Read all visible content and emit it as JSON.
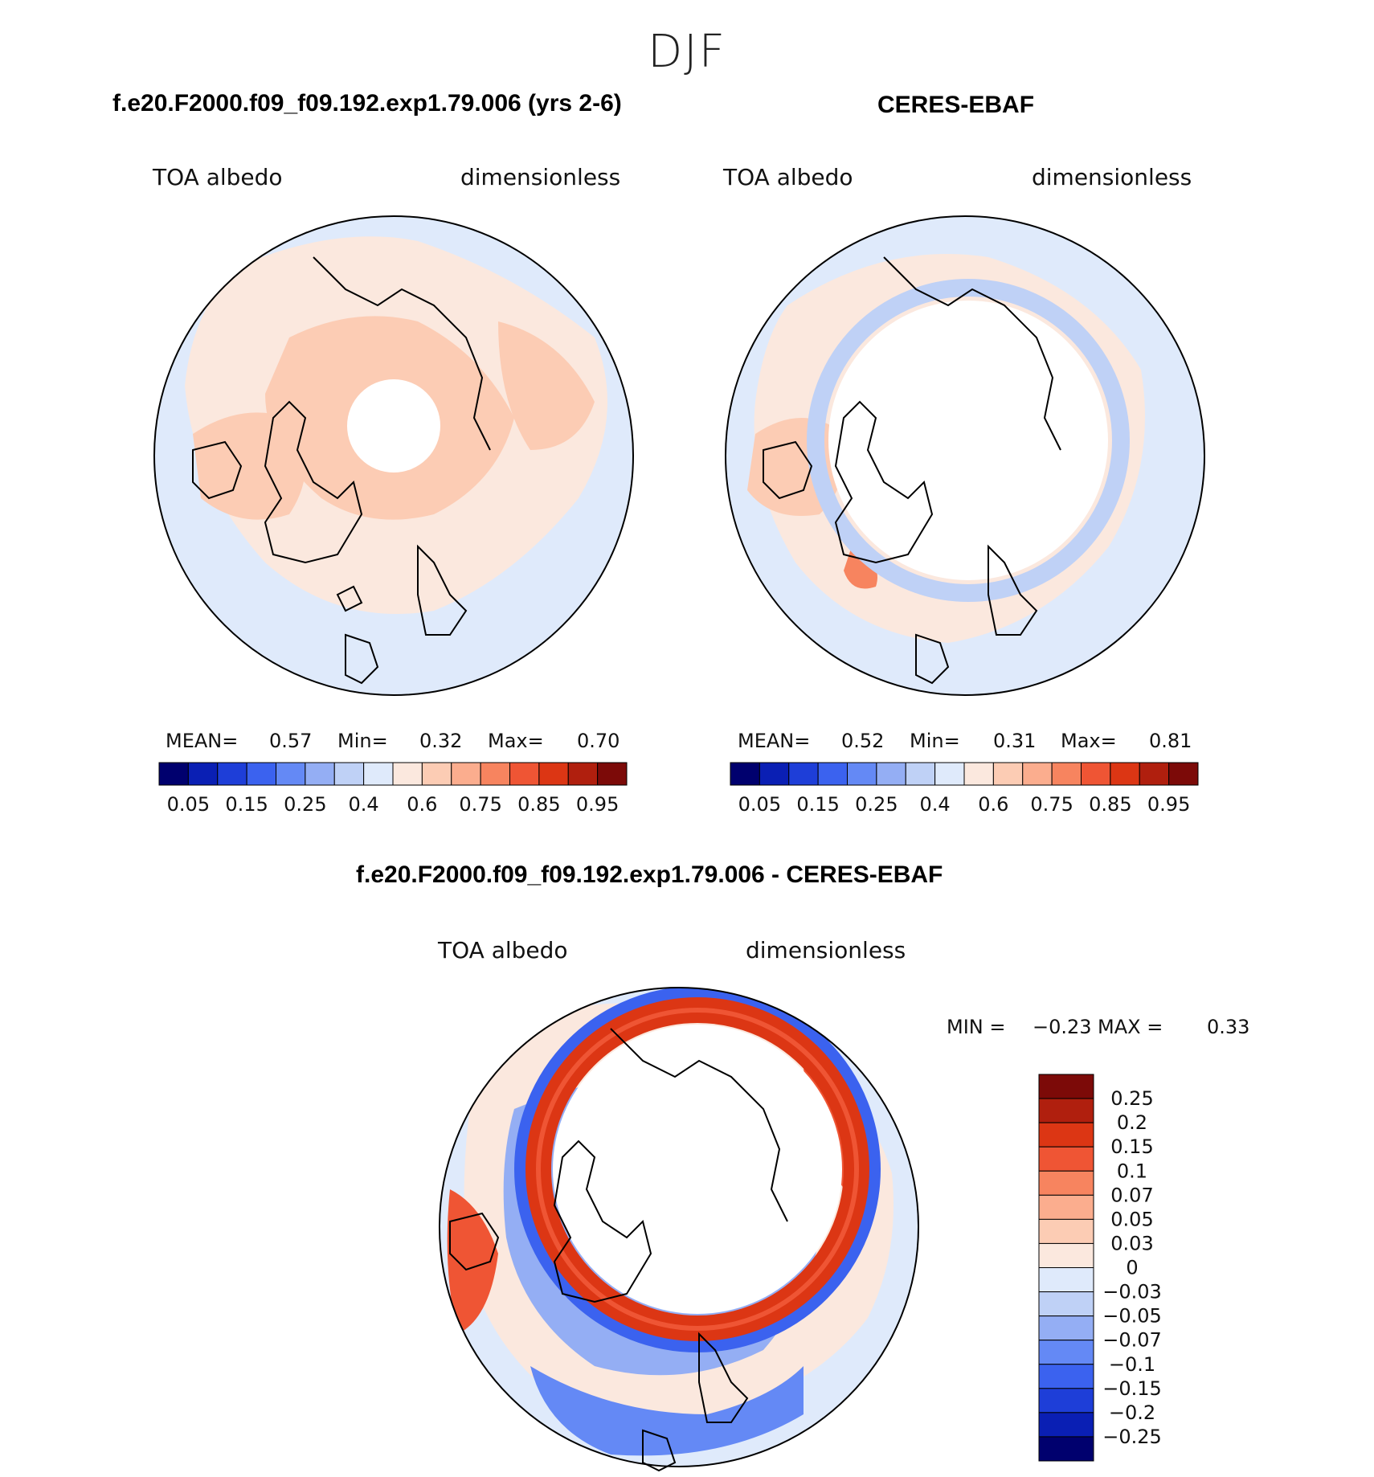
{
  "season": "DJF",
  "panels": [
    {
      "title": "f.e20.F2000.f09_f09.192.exp1.79.006 (yrs 2-6)",
      "variable": "TOA albedo",
      "units": "dimensionless",
      "stats": {
        "mean_label": "MEAN=",
        "mean": "0.57",
        "min_label": "Min=",
        "min": "0.32",
        "max_label": "Max=",
        "max": "0.70"
      }
    },
    {
      "title": "CERES-EBAF",
      "variable": "TOA albedo",
      "units": "dimensionless",
      "stats": {
        "mean_label": "MEAN=",
        "mean": "0.52",
        "min_label": "Min=",
        "min": "0.31",
        "max_label": "Max=",
        "max": "0.81"
      }
    },
    {
      "title": "f.e20.F2000.f09_f09.192.exp1.79.006 - CERES-EBAF",
      "variable": "TOA albedo",
      "units": "dimensionless",
      "stats": {
        "min_label": "MIN =",
        "min": "−0.23",
        "max_label": "MAX =",
        "max": "0.33"
      }
    }
  ],
  "colors": {
    "top_scale": [
      "#00006e",
      "#0a1fb4",
      "#1e3ed8",
      "#3b62ef",
      "#6489f5",
      "#94aef4",
      "#bfd1f6",
      "#dfeafb",
      "#fbe8de",
      "#fcccb4",
      "#fbad8e",
      "#f7845f",
      "#ef5534",
      "#dc3614",
      "#b01f0e",
      "#7c0a08"
    ],
    "diff_scale": [
      "#7c0a08",
      "#b01f0e",
      "#dc3614",
      "#ef5534",
      "#f7845f",
      "#fbad8e",
      "#fcccb4",
      "#fbe8de",
      "#dfeafb",
      "#bfd1f6",
      "#94aef4",
      "#6489f5",
      "#3b62ef",
      "#1e3ed8",
      "#0a1fb4",
      "#00006e"
    ]
  },
  "chart_data": [
    {
      "type": "heatmap",
      "projection": "north-polar-stereographic",
      "title": "f.e20.F2000.f09_f09.192.exp1.79.006 (yrs 2-6)",
      "variable": "TOA albedo",
      "units": "dimensionless",
      "mean": 0.57,
      "min": 0.32,
      "max": 0.7,
      "colorbar_levels": [
        0.05,
        0.1,
        0.15,
        0.2,
        0.25,
        0.3,
        0.4,
        0.5,
        0.6,
        0.7,
        0.75,
        0.8,
        0.85,
        0.9,
        0.95
      ],
      "colorbar_labels": [
        "0.05",
        "0.15",
        "0.25",
        "0.4",
        "0.6",
        "0.75",
        "0.85",
        "0.95"
      ]
    },
    {
      "type": "heatmap",
      "projection": "north-polar-stereographic",
      "title": "CERES-EBAF",
      "variable": "TOA albedo",
      "units": "dimensionless",
      "mean": 0.52,
      "min": 0.31,
      "max": 0.81,
      "colorbar_levels": [
        0.05,
        0.1,
        0.15,
        0.2,
        0.25,
        0.3,
        0.4,
        0.5,
        0.6,
        0.7,
        0.75,
        0.8,
        0.85,
        0.9,
        0.95
      ],
      "colorbar_labels": [
        "0.05",
        "0.15",
        "0.25",
        "0.4",
        "0.6",
        "0.75",
        "0.85",
        "0.95"
      ]
    },
    {
      "type": "heatmap",
      "projection": "north-polar-stereographic",
      "title": "f.e20.F2000.f09_f09.192.exp1.79.006 - CERES-EBAF",
      "variable": "TOA albedo",
      "units": "dimensionless",
      "min": -0.23,
      "max": 0.33,
      "colorbar_labels": [
        "0.25",
        "0.2",
        "0.15",
        "0.1",
        "0.07",
        "0.05",
        "0.03",
        "0",
        "−0.03",
        "−0.05",
        "−0.07",
        "−0.1",
        "−0.15",
        "−0.2",
        "−0.25"
      ]
    }
  ]
}
